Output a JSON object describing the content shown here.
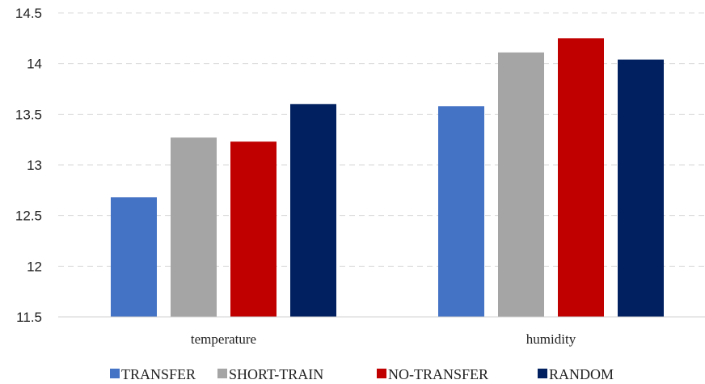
{
  "chart_data": {
    "type": "bar",
    "categories": [
      "temperature",
      "humidity"
    ],
    "series": [
      {
        "name": "TRANSFER",
        "color": "#4472C4",
        "values": [
          12.68,
          13.58
        ]
      },
      {
        "name": "SHORT-TRAIN",
        "color": "#A5A5A5",
        "values": [
          13.27,
          14.11
        ]
      },
      {
        "name": "NO-TRANSFER",
        "color": "#C00000",
        "values": [
          13.23,
          14.25
        ]
      },
      {
        "name": "RANDOM",
        "color": "#002060",
        "values": [
          13.6,
          14.04
        ]
      }
    ],
    "yticks": [
      "11.5",
      "12",
      "12.5",
      "13",
      "13.5",
      "14",
      "14.5"
    ],
    "ylim": [
      11.5,
      14.5
    ],
    "grid": true,
    "legend_position": "bottom"
  }
}
